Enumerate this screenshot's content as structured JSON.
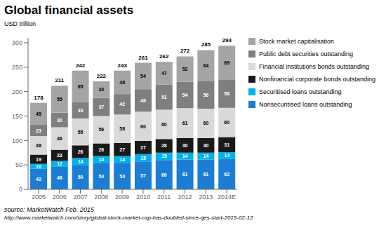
{
  "chart_data": {
    "type": "bar",
    "title": "Global financial assets",
    "subtitle": "USD trillion",
    "categories": [
      "2005",
      "2006",
      "2007",
      "2008",
      "2009",
      "2010",
      "2011",
      "2012",
      "2013",
      "2014E"
    ],
    "series": [
      {
        "name": "Nonsecuritised loans outstanding",
        "color": "#1b7ed4",
        "values": [
          42,
          46,
          50,
          54,
          54,
          57,
          60,
          61,
          61,
          62
        ]
      },
      {
        "name": "Securitised loans outstanding",
        "color": "#00b0f0",
        "values": [
          10,
          12,
          14,
          14,
          14,
          15,
          15,
          14,
          14,
          14
        ]
      },
      {
        "name": "Nonfinancial corporate bonds outstanding",
        "color": "#1a1a1a",
        "values": [
          19,
          23,
          26,
          26,
          27,
          27,
          28,
          30,
          30,
          31
        ]
      },
      {
        "name": "Financial institutions bonds outstanding",
        "color": "#d9d9d9",
        "values": [
          38,
          46,
          55,
          56,
          58,
          60,
          60,
          61,
          60,
          60
        ]
      },
      {
        "name": "Public debt securities outstanding",
        "color": "#7f7f7f",
        "values": [
          23,
          30,
          33,
          37,
          42,
          46,
          51,
          54,
          56,
          58
        ]
      },
      {
        "name": "Stock market capitalisation",
        "color": "#a5a5a5",
        "values": [
          45,
          55,
          65,
          34,
          48,
          54,
          47,
          52,
          64,
          69
        ]
      }
    ],
    "totals": [
      178,
      211,
      242,
      222,
      243,
      261,
      262,
      272,
      285,
      294
    ],
    "ylim": [
      0,
      310
    ],
    "yticks": [
      0,
      50,
      100,
      150,
      200,
      250,
      300
    ],
    "stacked": true,
    "data_labels": true,
    "grid": false,
    "legend": "right",
    "annotations": [
      "source: MarketWatch Feb. 2015",
      "http://www.marketwatch.com/story/global-stock-market-cap-has-doubled-since-qes-start-2015-02-12"
    ]
  }
}
